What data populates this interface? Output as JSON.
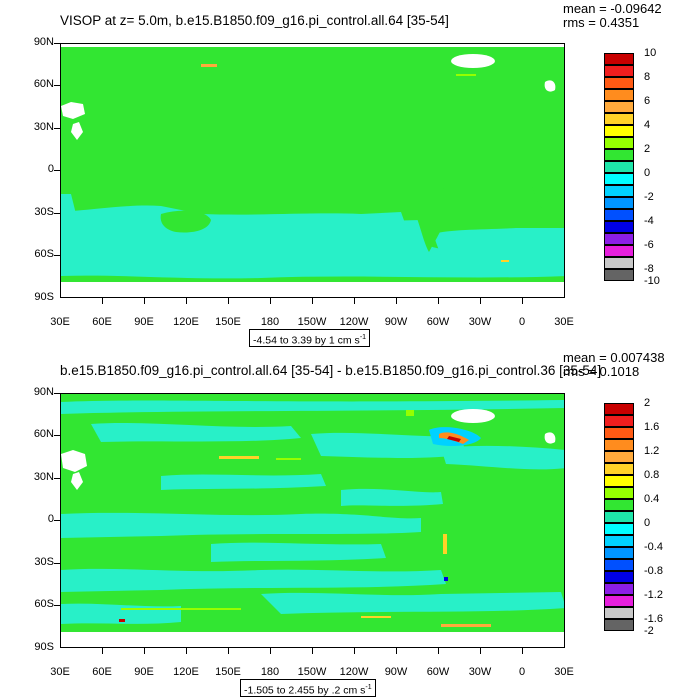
{
  "panels": [
    {
      "title": "VISOP at z=   5.0m, b.e15.B1850.f09_g16.pi_control.all.64 [35-54]",
      "mean_label": "mean = -0.09642",
      "rms_label": "rms = 0.4351",
      "range_label": "-4.54 to 3.39 by 1 cm s",
      "range_exp": "-1",
      "colorbar_labels": [
        "10",
        "8",
        "6",
        "4",
        "2",
        "0",
        "-2",
        "-4",
        "-6",
        "-8",
        "-10"
      ]
    },
    {
      "title": "b.e15.B1850.f09_g16.pi_control.all.64 [35-54] - b.e15.B1850.f09_g16.pi_control.36 [35-54]",
      "mean_label": "mean = 0.007438",
      "rms_label": "rms = 0.1018",
      "range_label": "-1.505 to 2.455 by .2 cm s",
      "range_exp": "-1",
      "colorbar_labels": [
        "2",
        "1.6",
        "1.2",
        "0.8",
        "0.4",
        "0",
        "-0.4",
        "-0.8",
        "-1.2",
        "-1.6",
        "-2"
      ]
    }
  ],
  "lat_labels": [
    "90N",
    "60N",
    "30N",
    "0",
    "30S",
    "60S",
    "90S"
  ],
  "lon_labels": [
    "30E",
    "60E",
    "90E",
    "120E",
    "150E",
    "180",
    "150W",
    "120W",
    "90W",
    "60W",
    "30W",
    "0",
    "30E"
  ],
  "colors": {
    "land_green": "#32e632",
    "ocean_cyan": "#28f0c8",
    "ocean_teal": "#1ee6aa",
    "missing": "#ffffff",
    "colorbar": [
      "#c80000",
      "#f01e1e",
      "#ff5a14",
      "#ff8c1e",
      "#ffaa3c",
      "#ffd228",
      "#ffff00",
      "#96ff00",
      "#32e632",
      "#1ee6aa",
      "#00ffff",
      "#00d2ff",
      "#0096ff",
      "#0050ff",
      "#0000e6",
      "#8c1ee6",
      "#e61edc",
      "#c8c8c8",
      "#646464"
    ]
  }
}
